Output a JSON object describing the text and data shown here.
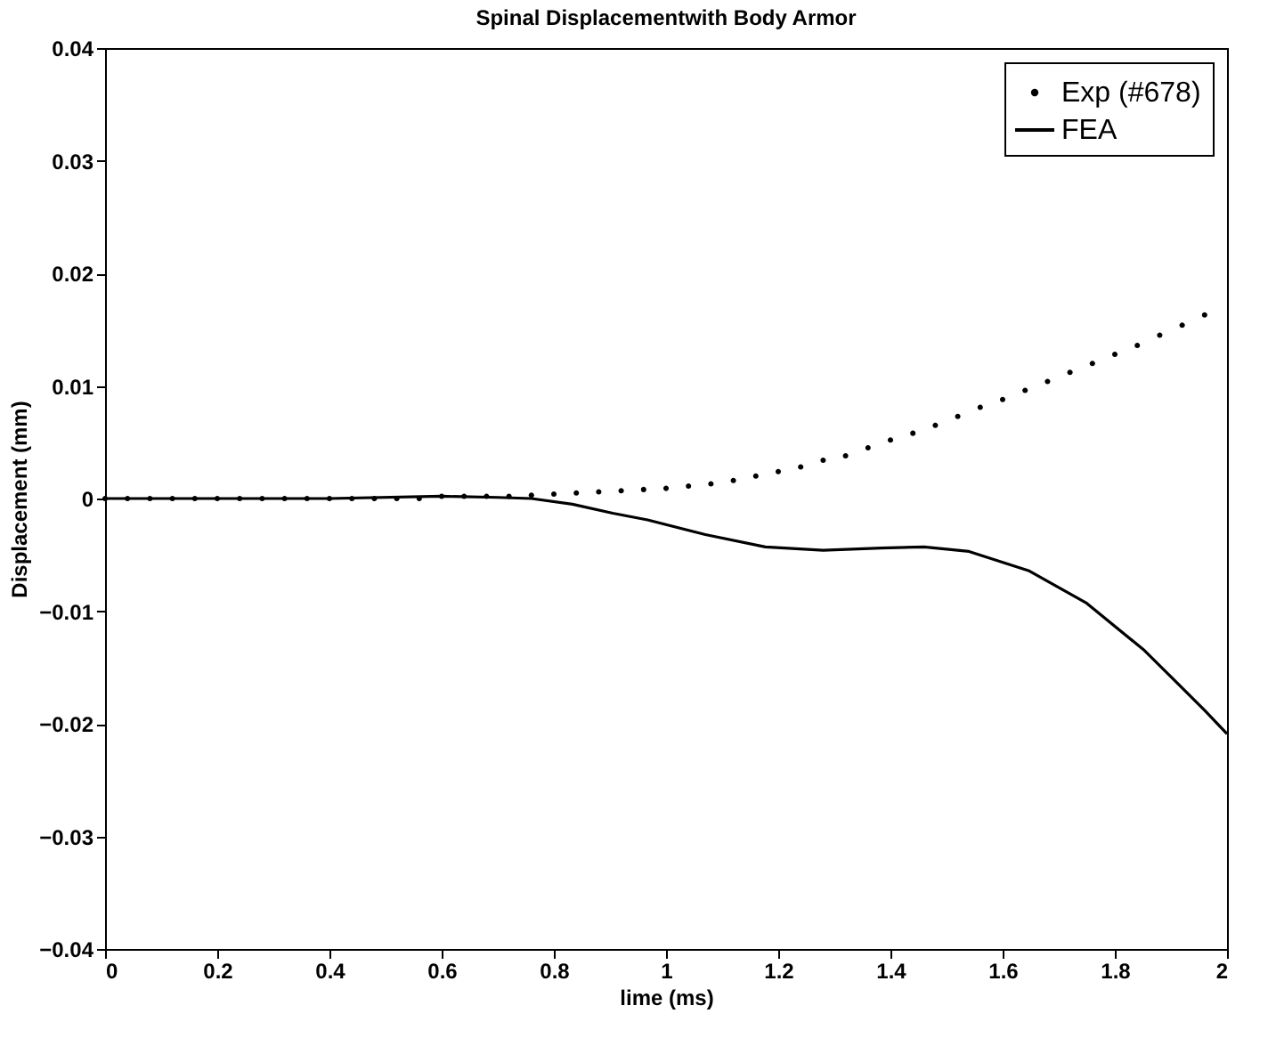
{
  "chart_data": {
    "type": "line",
    "title": "Spinal Displacementwith Body Armor",
    "xlabel": "lime (ms)",
    "ylabel": "Displacement (mm)",
    "xlim": [
      0,
      2
    ],
    "xticks": [
      0,
      0.2,
      0.4,
      0.6,
      0.8,
      1,
      1.2,
      1.4,
      1.6,
      1.8,
      2
    ],
    "ylim": [
      -0.04,
      0.04
    ],
    "yticks": [
      {
        "value": -0.04,
        "label": "−0.04"
      },
      {
        "value": -0.03,
        "label": "−0.03"
      },
      {
        "value": -0.02,
        "label": "−0.02"
      },
      {
        "value": -0.01,
        "label": "−0.01"
      },
      0,
      0.01,
      0.02,
      0.03,
      0.04
    ],
    "grid": false,
    "legend": "top right",
    "series": [
      {
        "name": "Exp (#678)",
        "type": "scatter",
        "marker": "circle",
        "color": "#000000",
        "x": [
          0,
          0.04,
          0.08,
          0.12,
          0.16,
          0.2,
          0.24,
          0.28,
          0.32,
          0.36,
          0.4,
          0.44,
          0.48,
          0.52,
          0.56,
          0.6,
          0.64,
          0.68,
          0.72,
          0.76,
          0.8,
          0.84,
          0.88,
          0.92,
          0.96,
          1,
          1.04,
          1.08,
          1.12,
          1.16,
          1.2,
          1.24,
          1.28,
          1.32,
          1.36,
          1.4,
          1.44,
          1.48,
          1.52,
          1.56,
          1.6,
          1.64,
          1.68,
          1.72,
          1.76,
          1.8,
          1.84,
          1.88,
          1.92,
          1.96
        ],
        "values": [
          0,
          0,
          0,
          0,
          0,
          0,
          0,
          0,
          0,
          0,
          0,
          0,
          0,
          0,
          0,
          0.0002,
          0.0002,
          0.0002,
          0.0002,
          0.0003,
          0.0004,
          0.0005,
          0.0006,
          0.0007,
          0.0008,
          0.0009,
          0.0011,
          0.0013,
          0.0016,
          0.002,
          0.0024,
          0.0028,
          0.0034,
          0.0038,
          0.0045,
          0.0052,
          0.0058,
          0.0065,
          0.0073,
          0.0081,
          0.0088,
          0.0096,
          0.0104,
          0.0112,
          0.012,
          0.0128,
          0.0136,
          0.0145,
          0.0154,
          0.0163
        ]
      },
      {
        "name": "FEA",
        "type": "line",
        "line_style": "solid",
        "color": "#000000",
        "x": [
          0,
          0.2,
          0.4,
          0.6,
          0.7,
          0.76,
          0.833,
          0.905,
          0.967,
          1.07,
          1.177,
          1.28,
          1.383,
          1.46,
          1.54,
          1.646,
          1.75,
          1.853,
          1.96,
          2
        ],
        "values": [
          0,
          0,
          0,
          0.0002,
          0.0001,
          0,
          -0.0005,
          -0.0013,
          -0.0019,
          -0.0032,
          -0.0043,
          -0.0046,
          -0.0044,
          -0.0043,
          -0.0047,
          -0.0064,
          -0.0093,
          -0.0135,
          -0.0188,
          -0.0209
        ]
      }
    ]
  }
}
